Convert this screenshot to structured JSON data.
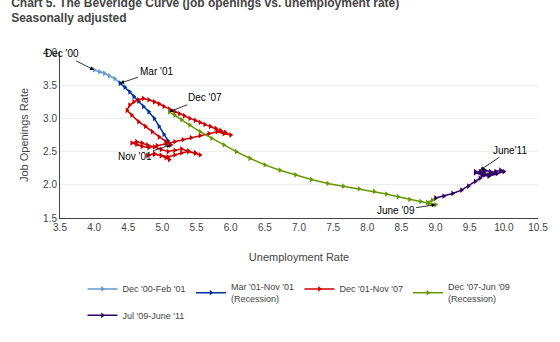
{
  "chart_data": {
    "type": "line",
    "title": "Chart 5. The Beveridge Curve (job openings vs. unemployment rate)",
    "subtitle": "Seasonally adjusted",
    "xlabel": "Unemployment Rate",
    "ylabel": "Job Openings Rate",
    "xlim": [
      3.5,
      10.5
    ],
    "ylim": [
      1.5,
      4.0
    ],
    "xticks": [
      3.5,
      {
        "value": 4.0,
        "label": "4.0"
      },
      4.5,
      {
        "value": 5.0,
        "label": "5.0"
      },
      5.5,
      {
        "value": 6.0,
        "label": "6.0"
      },
      6.5,
      {
        "value": 7.0,
        "label": "7.0"
      },
      7.5,
      {
        "value": 8.0,
        "label": "8.0"
      },
      8.5,
      {
        "value": 9.0,
        "label": "9.0"
      },
      9.5,
      {
        "value": 10.0,
        "label": "10.0"
      },
      10.5
    ],
    "yticks": [
      1.5,
      {
        "value": 2.0,
        "label": "2.0"
      },
      2.5,
      {
        "value": 3.0,
        "label": "3.0"
      },
      3.5,
      {
        "value": 4.0,
        "label": "4.0"
      }
    ],
    "grid": "y",
    "legend": "bottom",
    "marker": "triangle-right",
    "series": [
      {
        "name": "Dec '00-Feb '01",
        "color": "#6699CC",
        "x": [
          4.0,
          4.08,
          4.15,
          4.22,
          4.3,
          4.38
        ],
        "values": [
          3.73,
          3.7,
          3.68,
          3.64,
          3.6,
          3.53
        ]
      },
      {
        "name": "Mar '01-Nov '01\n(Recession)",
        "color": "#003399",
        "x": [
          4.38,
          4.45,
          4.52,
          4.58,
          4.65,
          4.72,
          4.8,
          4.88,
          4.95,
          5.02,
          5.08,
          5.12
        ],
        "values": [
          3.53,
          3.47,
          3.4,
          3.33,
          3.26,
          3.18,
          3.1,
          3.0,
          2.88,
          2.76,
          2.66,
          2.6
        ]
      },
      {
        "name": "Dec '01-Nov '07",
        "color": "#CC0000",
        "x": [
          5.12,
          5.05,
          4.95,
          4.85,
          4.75,
          4.65,
          4.55,
          4.48,
          4.52,
          4.58,
          4.65,
          4.72,
          4.8,
          4.88,
          4.95,
          5.02,
          5.1,
          5.18,
          5.25,
          5.32,
          5.4,
          5.48,
          5.55,
          5.62,
          5.7,
          5.78,
          5.85,
          5.92,
          6.0,
          5.9,
          5.8,
          5.68,
          5.55,
          5.42,
          5.3,
          5.18,
          5.05,
          4.92,
          4.8,
          4.7,
          4.62,
          4.55,
          4.62,
          4.7,
          4.78,
          4.88,
          4.98,
          5.08,
          5.18,
          5.28,
          5.38,
          5.48,
          5.55,
          5.48,
          5.38,
          5.28,
          5.18,
          5.08,
          4.98,
          4.88,
          4.78,
          4.88,
          4.98,
          5.05,
          5.1
        ],
        "values": [
          2.6,
          2.65,
          2.72,
          2.8,
          2.88,
          2.95,
          3.05,
          3.12,
          3.2,
          3.25,
          3.28,
          3.3,
          3.28,
          3.25,
          3.22,
          3.18,
          3.14,
          3.1,
          3.07,
          3.04,
          3.0,
          2.97,
          2.94,
          2.91,
          2.88,
          2.85,
          2.82,
          2.79,
          2.75,
          2.77,
          2.8,
          2.77,
          2.74,
          2.71,
          2.68,
          2.65,
          2.62,
          2.59,
          2.56,
          2.58,
          2.61,
          2.63,
          2.65,
          2.63,
          2.6,
          2.57,
          2.53,
          2.5,
          2.52,
          2.54,
          2.51,
          2.48,
          2.45,
          2.48,
          2.5,
          2.48,
          2.45,
          2.42,
          2.44,
          2.46,
          2.44,
          2.47,
          2.44,
          2.41,
          2.38
        ]
      },
      {
        "name": "Dec '07-Jun '09\n(Recession)",
        "color": "#669900",
        "x": [
          5.1,
          5.18,
          5.28,
          5.4,
          5.55,
          5.72,
          5.9,
          6.08,
          6.28,
          6.5,
          6.72,
          6.95,
          7.18,
          7.42,
          7.65,
          7.88,
          8.1,
          8.28,
          8.45,
          8.62,
          8.78,
          8.9,
          9.0,
          8.88,
          8.95,
          9.0
        ],
        "values": [
          3.1,
          3.05,
          2.98,
          2.9,
          2.8,
          2.7,
          2.6,
          2.5,
          2.4,
          2.3,
          2.22,
          2.15,
          2.08,
          2.02,
          1.98,
          1.94,
          1.9,
          1.86,
          1.82,
          1.78,
          1.75,
          1.72,
          1.7,
          1.73,
          1.77,
          1.8
        ]
      },
      {
        "name": "Jul '09-June '11",
        "color": "#330066",
        "x": [
          9.0,
          9.12,
          9.25,
          9.38,
          9.48,
          9.58,
          9.65,
          9.72,
          9.8,
          9.88,
          9.95,
          10.0,
          9.9,
          9.78,
          9.68,
          9.58,
          9.65,
          9.72,
          9.8,
          9.88,
          9.78,
          9.68,
          9.58,
          9.68,
          9.72
        ],
        "values": [
          1.8,
          1.83,
          1.87,
          1.92,
          1.98,
          2.05,
          2.1,
          2.15,
          2.18,
          2.2,
          2.22,
          2.2,
          2.17,
          2.13,
          2.15,
          2.18,
          2.2,
          2.22,
          2.2,
          2.18,
          2.15,
          2.17,
          2.2,
          2.17,
          2.2
        ]
      }
    ],
    "annotations": [
      {
        "text": "Dec '00",
        "x": 4.0,
        "y": 3.73
      },
      {
        "text": "Mar '01",
        "x": 4.38,
        "y": 3.53
      },
      {
        "text": "Nov '01",
        "x": 5.12,
        "y": 2.6
      },
      {
        "text": "Dec '07",
        "x": 5.1,
        "y": 3.1
      },
      {
        "text": "June '09",
        "x": 9.0,
        "y": 1.7
      },
      {
        "text": "June'11",
        "x": 9.65,
        "y": 2.22
      }
    ]
  }
}
